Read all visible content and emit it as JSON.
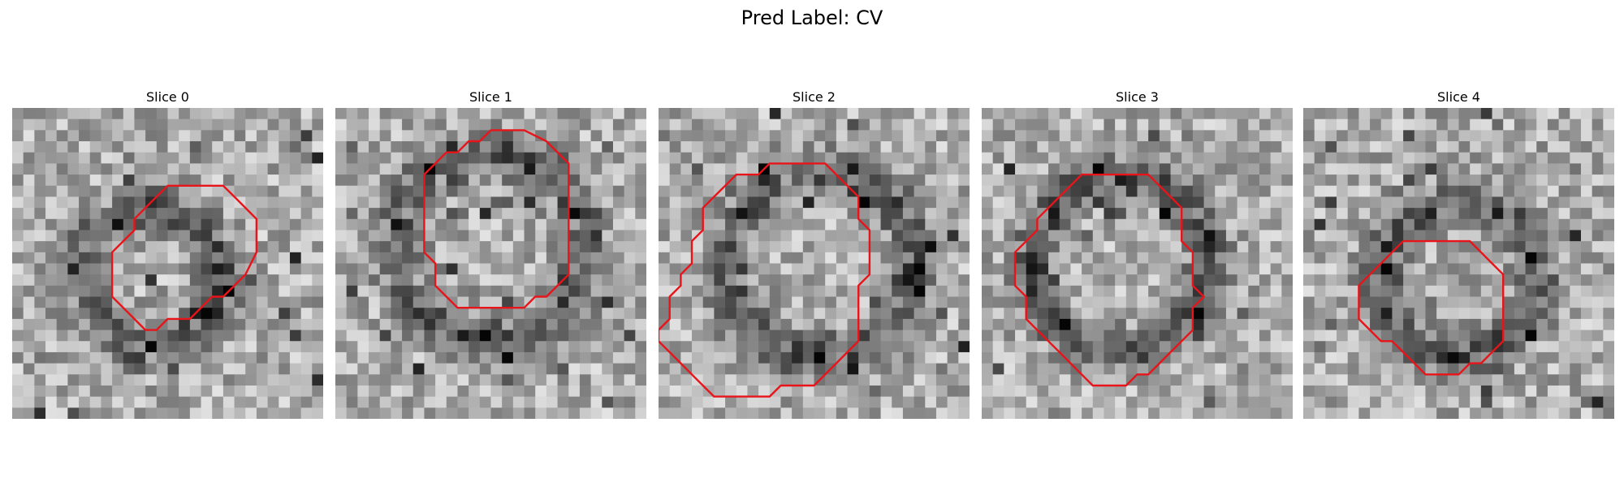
{
  "figure": {
    "title": "Pred Label: CV",
    "contour_color": "#e8141a",
    "colormap": "gray",
    "grid_size": 28,
    "panels": [
      {
        "title": "Slice 0",
        "seed": 11,
        "dark_ring": [
          0.45,
          0.55,
          0.22
        ],
        "contour": [
          [
            9,
            7
          ],
          [
            11,
            7
          ],
          [
            12,
            8
          ],
          [
            13,
            9
          ],
          [
            14,
            10
          ],
          [
            14,
            13
          ],
          [
            13,
            15
          ],
          [
            12,
            16
          ],
          [
            11,
            17
          ],
          [
            10,
            17
          ],
          [
            9,
            18
          ],
          [
            8,
            19
          ],
          [
            6,
            19
          ],
          [
            5,
            20
          ],
          [
            4,
            20
          ],
          [
            2,
            18
          ],
          [
            1,
            17
          ],
          [
            1,
            13
          ],
          [
            2,
            12
          ],
          [
            3,
            11
          ],
          [
            3,
            10
          ],
          [
            4,
            9
          ],
          [
            5,
            8
          ],
          [
            6,
            7
          ]
        ]
      },
      {
        "title": "Slice 1",
        "seed": 23,
        "dark_ring": [
          0.5,
          0.45,
          0.3
        ],
        "contour": [
          [
            7,
            2
          ],
          [
            9,
            2
          ],
          [
            11,
            3
          ],
          [
            13,
            5
          ],
          [
            13,
            15
          ],
          [
            12,
            16
          ],
          [
            11,
            17
          ],
          [
            10,
            17
          ],
          [
            9,
            18
          ],
          [
            8,
            18
          ],
          [
            3,
            18
          ],
          [
            2,
            17
          ],
          [
            1,
            16
          ],
          [
            1,
            14
          ],
          [
            0,
            13
          ],
          [
            0,
            6
          ],
          [
            1,
            5
          ],
          [
            2,
            4
          ],
          [
            3,
            4
          ],
          [
            4,
            3
          ],
          [
            5,
            3
          ],
          [
            6,
            2
          ]
        ]
      },
      {
        "title": "Slice 2",
        "seed": 37,
        "dark_ring": [
          0.52,
          0.5,
          0.3
        ],
        "contour": [
          [
            7,
            5
          ],
          [
            8,
            6
          ],
          [
            9,
            7
          ],
          [
            10,
            8
          ],
          [
            10,
            10
          ],
          [
            11,
            11
          ],
          [
            11,
            15
          ],
          [
            10,
            16
          ],
          [
            10,
            21
          ],
          [
            9,
            22
          ],
          [
            8,
            23
          ],
          [
            7,
            24
          ],
          [
            6,
            25
          ],
          [
            3,
            25
          ],
          [
            2,
            26
          ],
          [
            -3,
            26
          ],
          [
            -4,
            25
          ],
          [
            -5,
            24
          ],
          [
            -6,
            23
          ],
          [
            -7,
            22
          ],
          [
            -8,
            21
          ],
          [
            -8,
            20
          ],
          [
            -7,
            19
          ],
          [
            -7,
            17
          ],
          [
            -6,
            16
          ],
          [
            -6,
            15
          ],
          [
            -5,
            14
          ],
          [
            -5,
            12
          ],
          [
            -4,
            11
          ],
          [
            -4,
            9
          ],
          [
            -3,
            8
          ],
          [
            -2,
            7
          ],
          [
            -1,
            6
          ],
          [
            1,
            6
          ],
          [
            2,
            5
          ]
        ]
      },
      {
        "title": "Slice 3",
        "seed": 51,
        "dark_ring": [
          0.45,
          0.5,
          0.28
        ],
        "contour": [
          [
            5,
            6
          ],
          [
            7,
            6
          ],
          [
            8,
            7
          ],
          [
            9,
            8
          ],
          [
            10,
            9
          ],
          [
            10,
            12
          ],
          [
            11,
            13
          ],
          [
            11,
            15
          ],
          [
            11,
            16
          ],
          [
            12,
            17
          ],
          [
            11,
            18
          ],
          [
            11,
            20
          ],
          [
            10,
            21
          ],
          [
            9,
            22
          ],
          [
            8,
            23
          ],
          [
            7,
            24
          ],
          [
            6,
            24
          ],
          [
            5,
            25
          ],
          [
            2,
            25
          ],
          [
            1,
            24
          ],
          [
            0,
            23
          ],
          [
            -1,
            22
          ],
          [
            -2,
            21
          ],
          [
            -3,
            20
          ],
          [
            -4,
            19
          ],
          [
            -4,
            17
          ],
          [
            -5,
            16
          ],
          [
            -5,
            13
          ],
          [
            -4,
            12
          ],
          [
            -3,
            11
          ],
          [
            -3,
            10
          ],
          [
            -2,
            9
          ],
          [
            -1,
            8
          ],
          [
            0,
            7
          ],
          [
            1,
            6
          ]
        ]
      },
      {
        "title": "Slice 4",
        "seed": 67,
        "dark_ring": [
          0.5,
          0.55,
          0.25
        ],
        "contour": [
          [
            7,
            12
          ],
          [
            8,
            13
          ],
          [
            9,
            14
          ],
          [
            10,
            15
          ],
          [
            10,
            21
          ],
          [
            9,
            22
          ],
          [
            8,
            23
          ],
          [
            7,
            23
          ],
          [
            6,
            24
          ],
          [
            3,
            24
          ],
          [
            2,
            23
          ],
          [
            1,
            22
          ],
          [
            0,
            21
          ],
          [
            -1,
            21
          ],
          [
            -2,
            20
          ],
          [
            -3,
            19
          ],
          [
            -3,
            16
          ],
          [
            -2,
            15
          ],
          [
            -1,
            14
          ],
          [
            0,
            13
          ],
          [
            1,
            12
          ]
        ]
      }
    ]
  }
}
